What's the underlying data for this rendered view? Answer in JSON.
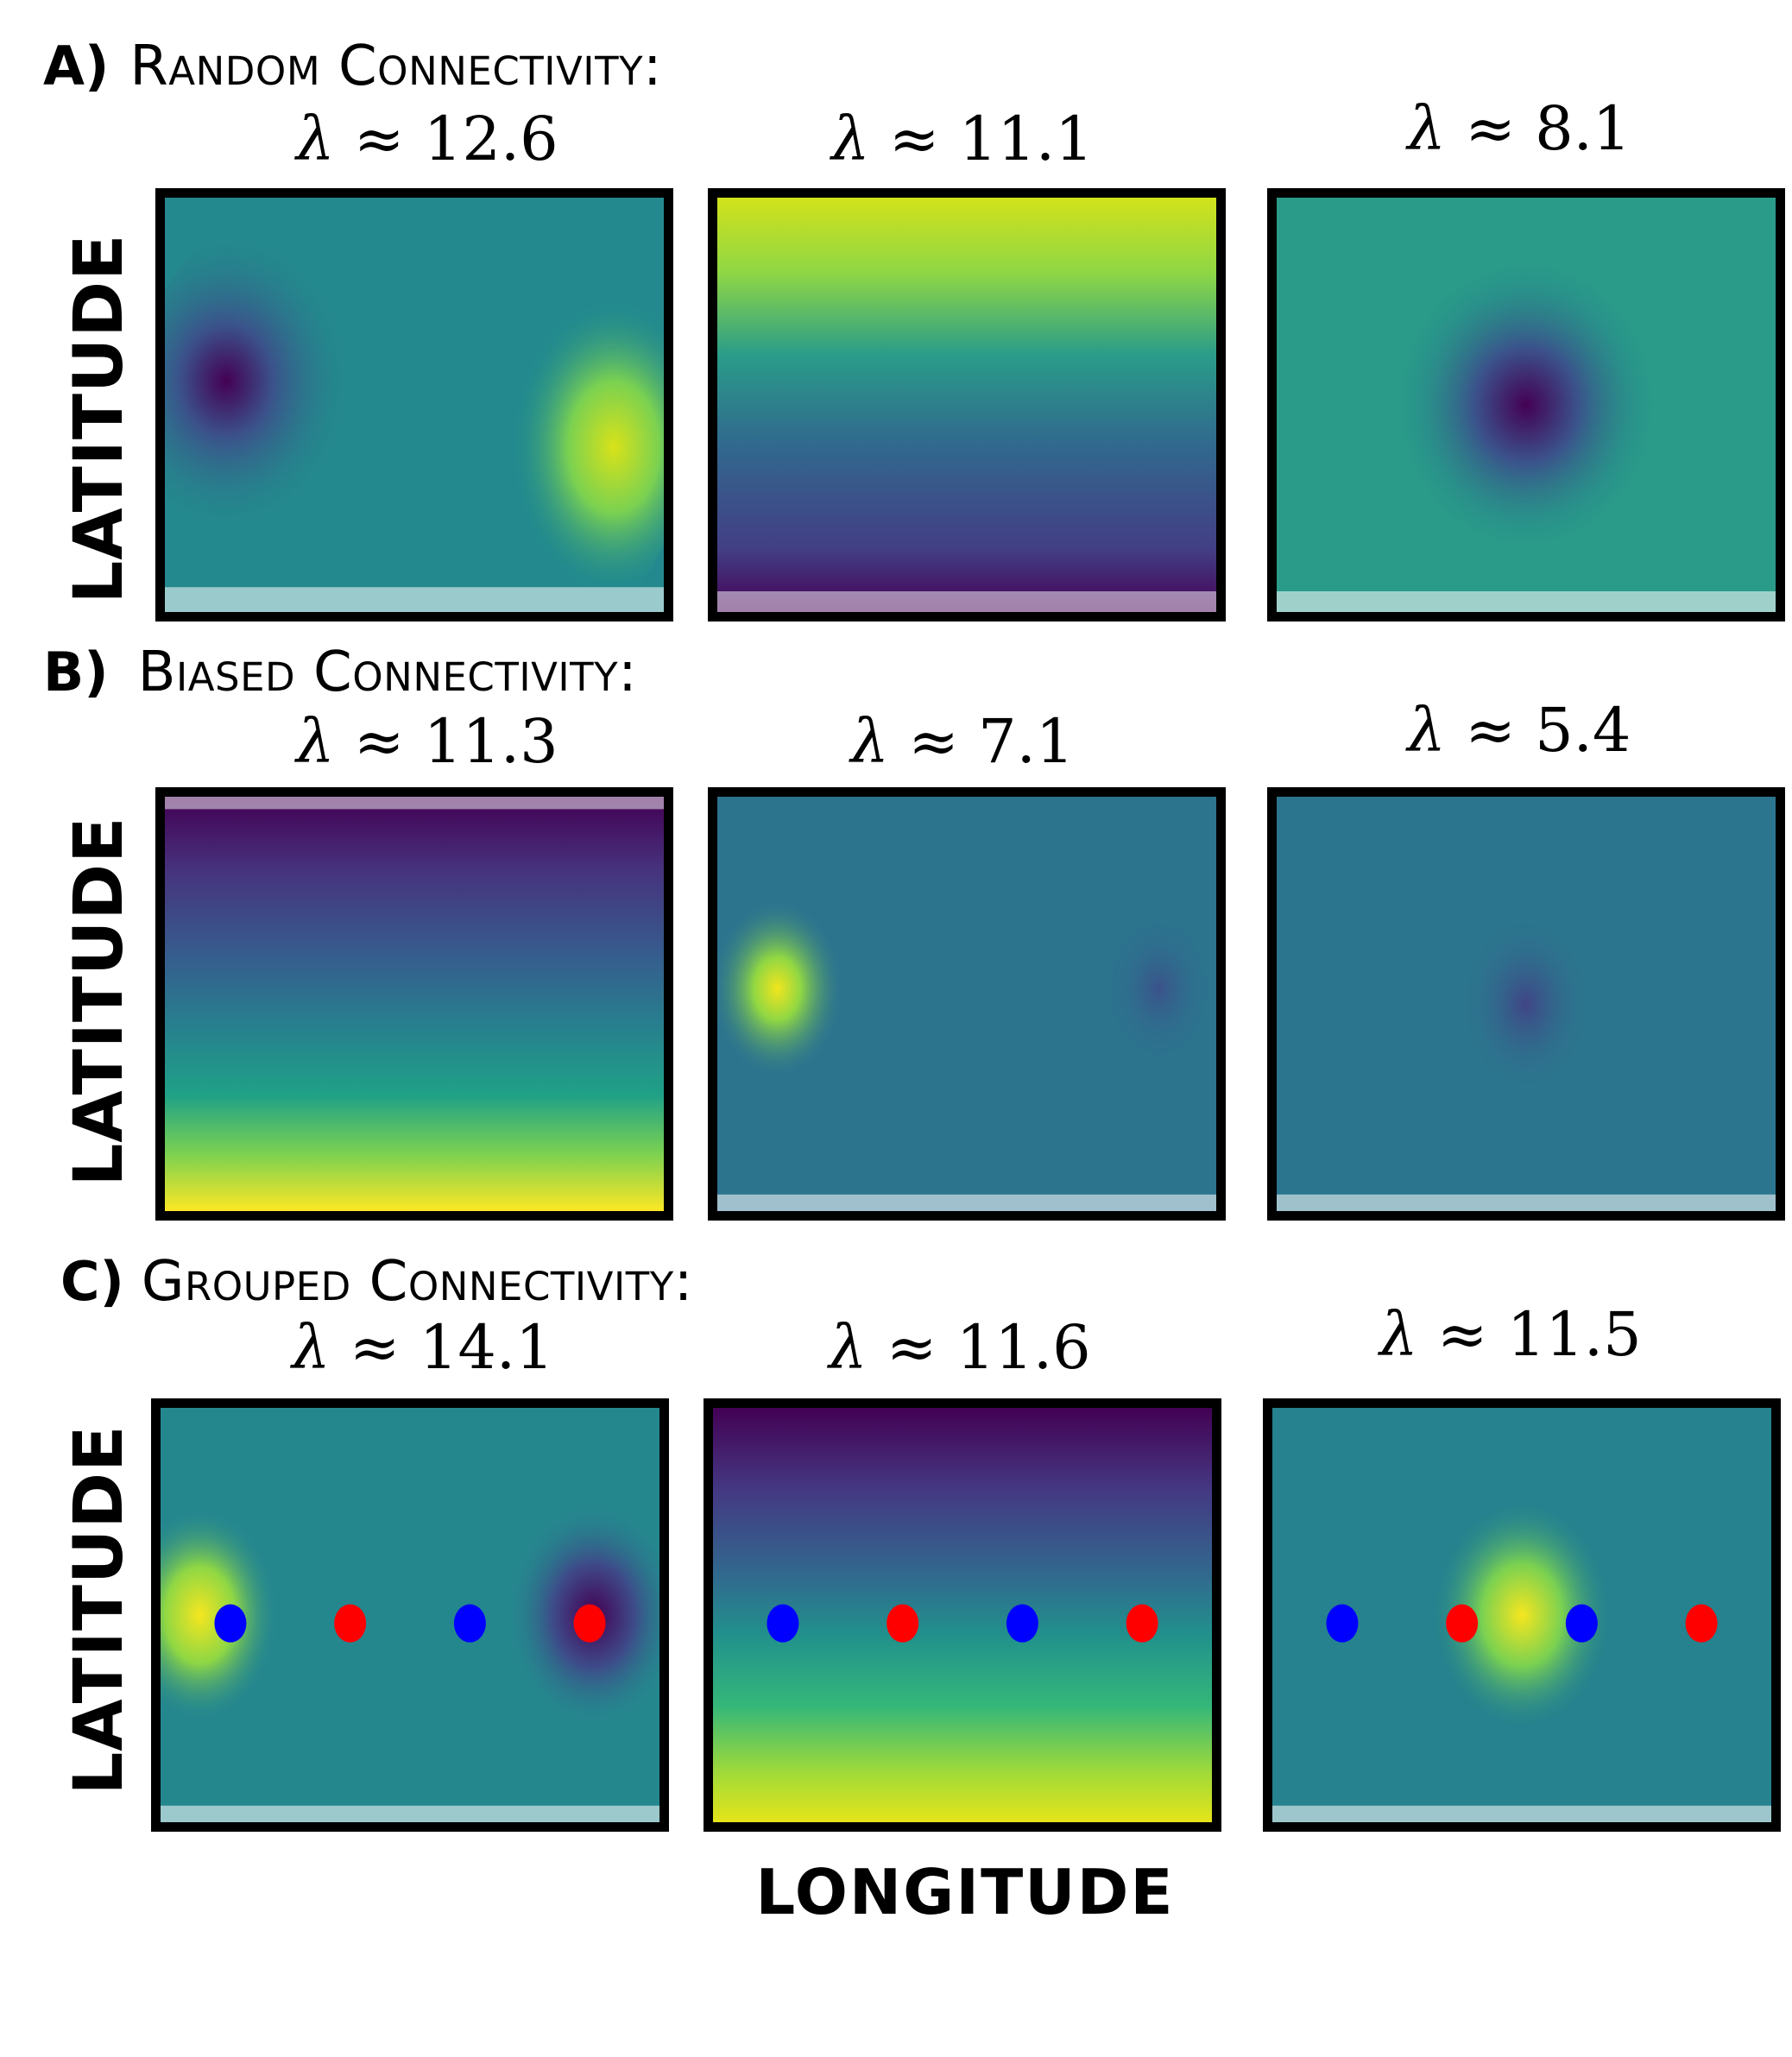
{
  "rows": [
    {
      "letter": "A)",
      "title": "Random Connectivity:",
      "lambdas": [
        {
          "symbol": "λ",
          "approx": "≈",
          "value": "12.6"
        },
        {
          "symbol": "λ",
          "approx": "≈",
          "value": "11.1"
        },
        {
          "symbol": "λ",
          "approx": "≈",
          "value": "8.1"
        }
      ],
      "y_label": "LATITUDE"
    },
    {
      "letter": "B)",
      "title": "Biased Connectivity:",
      "lambdas": [
        {
          "symbol": "λ",
          "approx": "≈",
          "value": "11.3"
        },
        {
          "symbol": "λ",
          "approx": "≈",
          "value": "7.1"
        },
        {
          "symbol": "λ",
          "approx": "≈",
          "value": "5.4"
        }
      ],
      "y_label": "LATITUDE"
    },
    {
      "letter": "C)",
      "title": "Grouped Connectivity:",
      "lambdas": [
        {
          "symbol": "λ",
          "approx": "≈",
          "value": "14.1"
        },
        {
          "symbol": "λ",
          "approx": "≈",
          "value": "11.6"
        },
        {
          "symbol": "λ",
          "approx": "≈",
          "value": "11.5"
        }
      ],
      "y_label": "LATITUDE"
    }
  ],
  "x_label": "LONGITUDE",
  "colors": {
    "viridis_dark": "#440154",
    "viridis_mid_dark": "#31688e",
    "viridis_mid": "#21918c",
    "viridis_light": "#5ec962",
    "viridis_bright": "#fde725",
    "marker_blue": "#0000ff",
    "marker_red": "#ff0000"
  }
}
